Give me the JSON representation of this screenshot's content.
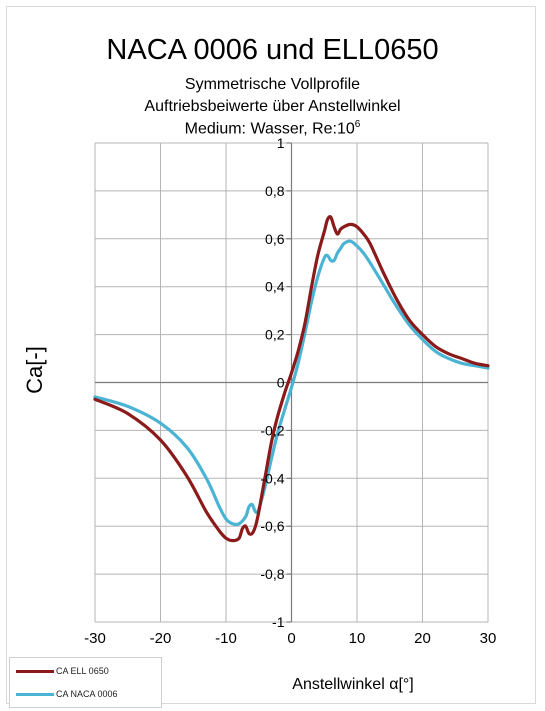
{
  "chart_data": {
    "type": "line",
    "title": "NACA 0006 und ELL0650",
    "subtitle_lines": [
      "Symmetrische Vollprofile",
      "Auftriebsbeiwerte über Anstellwinkel"
    ],
    "subtitle_medium": "Medium: Wasser, Re:10",
    "subtitle_exponent": "6",
    "xlabel": "Anstellwinkel  α[°]",
    "ylabel": "Ca[-]",
    "xlim": [
      -30,
      30
    ],
    "ylim": [
      -1,
      1
    ],
    "x_ticks": [
      "-30",
      "-20",
      "-10",
      "0",
      "10",
      "20",
      "30"
    ],
    "y_ticks": [
      "1",
      "0,8",
      "0,6",
      "0,4",
      "0,2",
      "0",
      "-0,2",
      "-0,4",
      "-0,6",
      "-0,8",
      "-1"
    ],
    "grid": true,
    "legend_position": "bottom-left",
    "series": [
      {
        "name": "CA ELL 0650",
        "color": "#8b1a1a",
        "x": [
          -30,
          -25,
          -20,
          -16,
          -13,
          -11,
          -10,
          -9,
          -8,
          -7.5,
          -7,
          -6.5,
          -6,
          -5.5,
          -5,
          -4,
          -3,
          -2,
          -1,
          0,
          1,
          2,
          3,
          4,
          5,
          5.5,
          6,
          6.5,
          7,
          7.5,
          8,
          9,
          10,
          11,
          12,
          14,
          16,
          18,
          20,
          22,
          24,
          26,
          28,
          30
        ],
        "y": [
          -0.07,
          -0.13,
          -0.24,
          -0.39,
          -0.54,
          -0.62,
          -0.65,
          -0.66,
          -0.65,
          -0.61,
          -0.6,
          -0.63,
          -0.63,
          -0.6,
          -0.54,
          -0.39,
          -0.24,
          -0.13,
          -0.04,
          0.04,
          0.13,
          0.24,
          0.39,
          0.53,
          0.63,
          0.68,
          0.69,
          0.65,
          0.62,
          0.64,
          0.65,
          0.66,
          0.65,
          0.62,
          0.58,
          0.46,
          0.35,
          0.26,
          0.2,
          0.15,
          0.12,
          0.1,
          0.08,
          0.07
        ]
      },
      {
        "name": "CA NACA 0006",
        "color": "#4bb3d3",
        "x": [
          -30,
          -25,
          -20,
          -16,
          -13,
          -11,
          -10,
          -9,
          -8,
          -7,
          -6.5,
          -6,
          -5.5,
          -5,
          -4,
          -3,
          -2,
          -1,
          0,
          1,
          2,
          3,
          4,
          5,
          5.5,
          6,
          6.5,
          7,
          7.5,
          8,
          9,
          10,
          11,
          12,
          14,
          16,
          18,
          20,
          22,
          24,
          26,
          28,
          30
        ],
        "y": [
          -0.06,
          -0.1,
          -0.17,
          -0.27,
          -0.4,
          -0.52,
          -0.57,
          -0.59,
          -0.59,
          -0.56,
          -0.52,
          -0.51,
          -0.54,
          -0.53,
          -0.43,
          -0.31,
          -0.2,
          -0.11,
          -0.02,
          0.08,
          0.2,
          0.33,
          0.44,
          0.52,
          0.53,
          0.51,
          0.51,
          0.54,
          0.56,
          0.58,
          0.59,
          0.57,
          0.54,
          0.5,
          0.41,
          0.32,
          0.24,
          0.18,
          0.13,
          0.1,
          0.08,
          0.07,
          0.06
        ]
      }
    ]
  }
}
